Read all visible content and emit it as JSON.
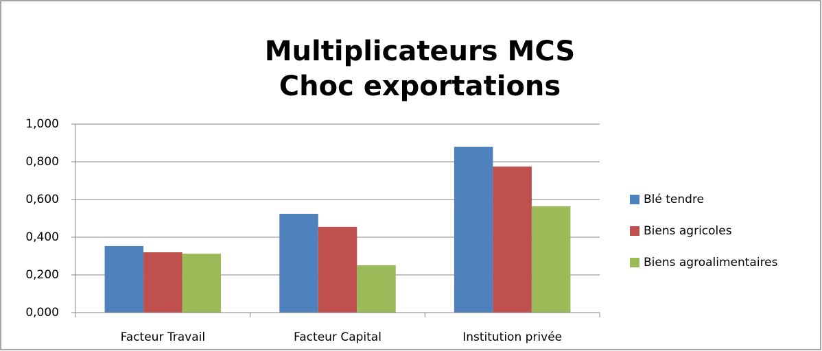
{
  "chart_data": {
    "type": "bar",
    "title": [
      "Multiplicateurs MCS",
      "Choc exportations"
    ],
    "categories": [
      "Facteur Travail",
      "Facteur Capital",
      "Institution privée"
    ],
    "series": [
      {
        "name": "Blé tendre",
        "color": "#4f81bd",
        "values": [
          0.353,
          0.524,
          0.88
        ]
      },
      {
        "name": "Biens agricoles",
        "color": "#c0504d",
        "values": [
          0.32,
          0.455,
          0.775
        ]
      },
      {
        "name": "Biens agroalimentaires",
        "color": "#9bbb59",
        "values": [
          0.313,
          0.251,
          0.564
        ]
      }
    ],
    "ylim": [
      0,
      1
    ],
    "yticks": [
      {
        "value": 0,
        "label": "0,000"
      },
      {
        "value": 0.2,
        "label": "0,200"
      },
      {
        "value": 0.4,
        "label": "0,400"
      },
      {
        "value": 0.6,
        "label": "0,600"
      },
      {
        "value": 0.8,
        "label": "0,800"
      },
      {
        "value": 1,
        "label": "1,000"
      }
    ],
    "grid": true,
    "legend": "right"
  }
}
